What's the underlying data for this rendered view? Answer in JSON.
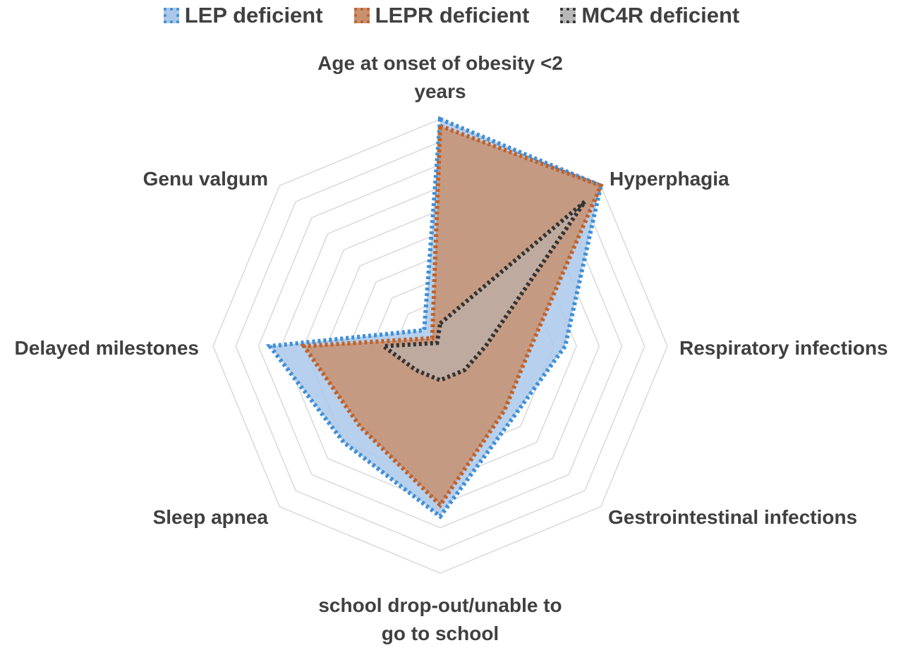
{
  "chart_data": {
    "type": "radar",
    "categories": [
      "Age at onset of obesity <2 years",
      "Hyperphagia",
      "Respiratory infections",
      "Gestrointestinal infections",
      "school drop-out/unable to go to school",
      "Sleep apnea",
      "Delayed milestones",
      "Genu valgum"
    ],
    "category_lines": [
      [
        "Age at onset of obesity <2",
        "years"
      ],
      [
        "Hyperphagia"
      ],
      [
        "Respiratory infections"
      ],
      [
        "Gestrointestinal infections"
      ],
      [
        "school drop-out/unable to",
        "go to school"
      ],
      [
        "Sleep apnea"
      ],
      [
        "Delayed milestones"
      ],
      [
        "Genu valgum"
      ]
    ],
    "series": [
      {
        "name": "LEP deficient",
        "fill": "#a9c8ea",
        "stroke": "#3f8fd6",
        "values": [
          100,
          100,
          55,
          45,
          75,
          60,
          75,
          10
        ]
      },
      {
        "name": "LEPR deficient",
        "fill": "#c8906f",
        "stroke": "#c0612a",
        "values": [
          97,
          100,
          40,
          40,
          70,
          50,
          60,
          5
        ]
      },
      {
        "name": "MC4R deficient",
        "fill": "#b8b8b8",
        "stroke": "#333333",
        "values": [
          10,
          90,
          20,
          15,
          15,
          15,
          25,
          2
        ]
      }
    ],
    "rmax": 100,
    "grid_levels": 10,
    "grid": true,
    "legend_position": "top"
  }
}
